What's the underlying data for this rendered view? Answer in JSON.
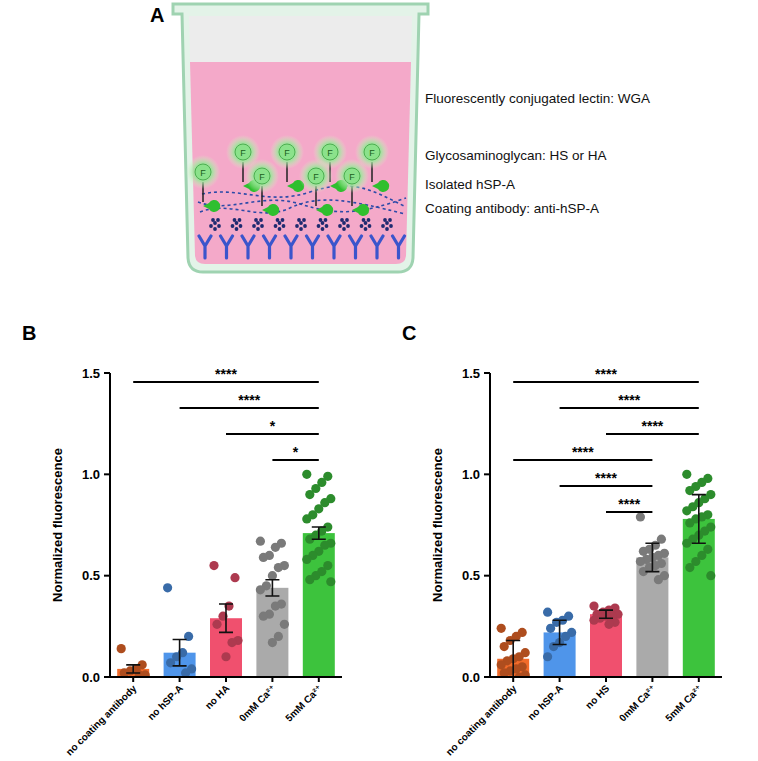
{
  "diagram": {
    "title": "A",
    "labels": [
      "Fluorescently conjugated lectin: WGA",
      "Glycosaminoglycan: HS or HA",
      "Isolated hSP-A",
      "Coating antibody: anti-hSP-A"
    ]
  },
  "chart_data": [
    {
      "type": "bar",
      "title": "B",
      "y_label": "Normalized fluorescence",
      "categories": [
        "no coating antibody",
        "no hSP-A",
        "no HA",
        "0mM Ca²⁺",
        "5mM Ca²⁺"
      ],
      "values": [
        0.04,
        0.12,
        0.29,
        0.44,
        0.71
      ],
      "errors": [
        0.02,
        0.065,
        0.07,
        0.04,
        0.03
      ],
      "points": [
        [
          0.14,
          0.06,
          0.04,
          0.03,
          0.02,
          0.01,
          0.01
        ],
        [
          0.44,
          0.2,
          0.12,
          0.1,
          0.07,
          0.04,
          0.02
        ],
        [
          0.55,
          0.49,
          0.35,
          0.3,
          0.26,
          0.18,
          0.17,
          0.1
        ],
        [
          0.67,
          0.66,
          0.64,
          0.6,
          0.59,
          0.55,
          0.54,
          0.5,
          0.45,
          0.43,
          0.36,
          0.35,
          0.31,
          0.3,
          0.26,
          0.2,
          0.17
        ],
        [
          1.0,
          0.99,
          0.96,
          0.93,
          0.9,
          0.88,
          0.86,
          0.83,
          0.8,
          0.78,
          0.74,
          0.72,
          0.7,
          0.68,
          0.66,
          0.65,
          0.62,
          0.6,
          0.58,
          0.55,
          0.52,
          0.5,
          0.48,
          0.47
        ]
      ],
      "colors": [
        "#f26b2a",
        "#4f95ea",
        "#f0506e",
        "#aaaaaa",
        "#3dc33d"
      ],
      "ylim": [
        0,
        1.5
      ],
      "yticks": [
        {
          "value": 0,
          "label": "0.0"
        },
        {
          "value": 0.5,
          "label": "0.5"
        },
        {
          "value": 1,
          "label": "1.0"
        },
        {
          "value": 1.5,
          "label": "1.5"
        }
      ],
      "annotations": [
        {
          "from": "no coating antibody",
          "to": "5mM Ca²⁺",
          "label": "****"
        },
        {
          "from": "no hSP-A",
          "to": "5mM Ca²⁺",
          "label": "****"
        },
        {
          "from": "no HA",
          "to": "5mM Ca²⁺",
          "label": "*"
        },
        {
          "from": "0mM Ca²⁺",
          "to": "5mM Ca²⁺",
          "label": "*"
        }
      ]
    },
    {
      "type": "bar",
      "title": "C",
      "y_label": "Normalized fluorescence",
      "categories": [
        "no coating antibody",
        "no hSP-A",
        "no HS",
        "0mM Ca²⁺",
        "5mM Ca²⁺"
      ],
      "values": [
        0.09,
        0.22,
        0.31,
        0.59,
        0.78
      ],
      "errors": [
        0.09,
        0.06,
        0.02,
        0.07,
        0.12
      ],
      "points": [
        [
          0.24,
          0.22,
          0.2,
          0.18,
          0.15,
          0.12,
          0.1,
          0.09,
          0.08,
          0.06,
          0.05,
          0.04,
          0.03,
          0.02,
          0.01,
          0.0
        ],
        [
          0.32,
          0.3,
          0.28,
          0.27,
          0.24,
          0.22,
          0.2,
          0.17,
          0.15,
          0.1
        ],
        [
          0.35,
          0.34,
          0.33,
          0.32,
          0.31,
          0.31,
          0.3,
          0.3,
          0.29,
          0.28,
          0.27,
          0.26
        ],
        [
          0.79,
          0.68,
          0.65,
          0.63,
          0.62,
          0.61,
          0.6,
          0.59,
          0.58,
          0.57,
          0.56,
          0.55,
          0.54,
          0.52,
          0.5,
          0.48
        ],
        [
          1.0,
          0.98,
          0.96,
          0.94,
          0.92,
          0.9,
          0.88,
          0.86,
          0.84,
          0.82,
          0.8,
          0.79,
          0.78,
          0.76,
          0.74,
          0.72,
          0.7,
          0.68,
          0.66,
          0.63,
          0.6,
          0.57,
          0.54,
          0.5
        ]
      ],
      "colors": [
        "#f26b2a",
        "#4f95ea",
        "#f0506e",
        "#aaaaaa",
        "#3dc33d"
      ],
      "ylim": [
        0,
        1.5
      ],
      "yticks": [
        {
          "value": 0,
          "label": "0.0"
        },
        {
          "value": 0.5,
          "label": "0.5"
        },
        {
          "value": 1,
          "label": "1.0"
        },
        {
          "value": 1.5,
          "label": "1.5"
        }
      ],
      "annotations": [
        {
          "from": "no coating antibody",
          "to": "5mM Ca²⁺",
          "label": "****"
        },
        {
          "from": "no hSP-A",
          "to": "5mM Ca²⁺",
          "label": "****"
        },
        {
          "from": "no HS",
          "to": "5mM Ca²⁺",
          "label": "****"
        },
        {
          "from": "no coating antibody",
          "to": "0mM Ca²⁺",
          "label": "****"
        },
        {
          "from": "no hSP-A",
          "to": "0mM Ca²⁺",
          "label": "****"
        },
        {
          "from": "no HS",
          "to": "0mM Ca²⁺",
          "label": "****"
        }
      ]
    }
  ]
}
